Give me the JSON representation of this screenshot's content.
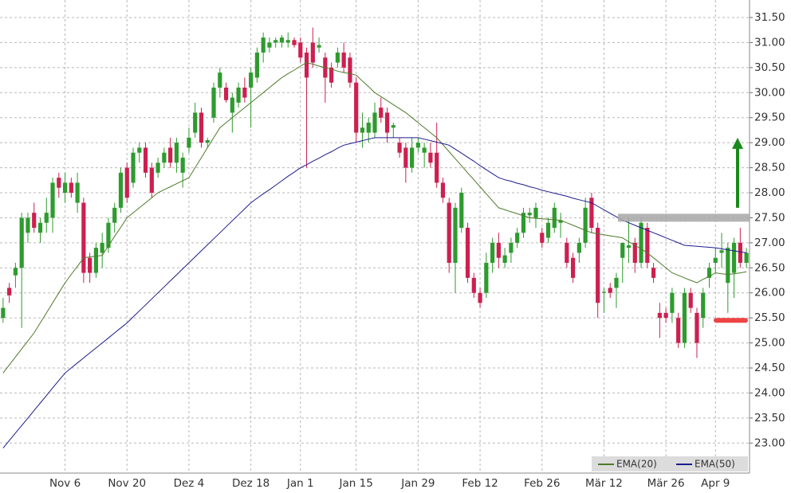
{
  "chart_data": {
    "type": "candlestick",
    "categories": [
      null,
      null,
      null,
      null,
      null,
      null,
      null,
      null,
      null,
      null,
      "Nov 6",
      null,
      null,
      null,
      null,
      null,
      null,
      null,
      null,
      null,
      "Nov 20",
      null,
      null,
      null,
      null,
      null,
      null,
      null,
      null,
      null,
      "Dez 4",
      null,
      null,
      null,
      null,
      null,
      null,
      null,
      null,
      null,
      "Dez 18",
      null,
      null,
      null,
      null,
      null,
      null,
      null,
      "Jan 1",
      null,
      null,
      null,
      null,
      null,
      null,
      null,
      null,
      "Jan 15",
      null,
      null,
      null,
      null,
      null,
      null,
      null,
      null,
      null,
      "Jan 29",
      null,
      null,
      null,
      null,
      null,
      null,
      null,
      null,
      null,
      "Feb 12",
      null,
      null,
      null,
      null,
      null,
      null,
      null,
      null,
      null,
      "Feb 26",
      null,
      null,
      null,
      null,
      null,
      null,
      null,
      null,
      null,
      "Mär 12",
      null,
      null,
      null,
      null,
      null,
      null,
      null,
      null,
      null,
      "Mär 26",
      null,
      null,
      null,
      null,
      null,
      null,
      null,
      "Apr 9",
      null,
      null,
      null,
      null,
      null
    ],
    "open": [
      25.5,
      26.1,
      26.35,
      26.5,
      27.2,
      27.6,
      27.2,
      27.4,
      27.5,
      28.3,
      28.0,
      28.2,
      27.8,
      27.8,
      26.7,
      26.4,
      26.8,
      26.9,
      27.4,
      27.7,
      28.5,
      28.2,
      28.8,
      28.9,
      28.5,
      28.4,
      28.6,
      28.9,
      28.6,
      28.4,
      28.9,
      29.2,
      29.6,
      29.0,
      29.5,
      30.1,
      30.1,
      29.6,
      29.8,
      30.1,
      30.1,
      30.3,
      30.8,
      30.9,
      31.0,
      31.0,
      31.0,
      31.05,
      31.0,
      30.8,
      31.0,
      30.9,
      30.7,
      30.5,
      30.6,
      30.8,
      30.7,
      30.2,
      29.2,
      29.2,
      29.2,
      29.7,
      29.6,
      29.3,
      29.0,
      28.9,
      28.5,
      28.9,
      28.8,
      28.8,
      28.8,
      28.2,
      27.8,
      26.6,
      27.3,
      27.3,
      26.3,
      26.0,
      26.0,
      26.6,
      27.0,
      26.6,
      26.8,
      27.0,
      27.2,
      27.55,
      27.5,
      27.2,
      27.1,
      27.3,
      27.4,
      27.0,
      26.7,
      26.8,
      27.0,
      27.9,
      27.3,
      26.0,
      26.1,
      26.1,
      26.7,
      26.9,
      27.0,
      26.6,
      27.3,
      26.5,
      25.6,
      25.6,
      25.6,
      25.5,
      25.0,
      26.0,
      25.6,
      25.5,
      26.3,
      26.6,
      26.8,
      26.2,
      26.4,
      27.0,
      26.6
    ],
    "high": [
      25.9,
      26.2,
      26.6,
      27.6,
      27.6,
      27.8,
      27.5,
      27.9,
      28.3,
      28.4,
      28.4,
      28.3,
      28.4,
      27.9,
      26.8,
      27.0,
      27.2,
      27.5,
      27.8,
      28.5,
      28.6,
      28.9,
      29.0,
      29.0,
      28.6,
      28.7,
      28.9,
      29.1,
      29.1,
      28.8,
      29.3,
      29.8,
      29.7,
      29.1,
      30.2,
      30.5,
      30.2,
      30.0,
      30.2,
      30.3,
      30.5,
      30.9,
      31.2,
      31.1,
      31.1,
      31.15,
      31.2,
      31.1,
      31.1,
      30.9,
      31.3,
      31.1,
      30.8,
      30.6,
      30.9,
      31.0,
      30.8,
      30.3,
      29.6,
      29.5,
      29.8,
      29.9,
      29.7,
      29.4,
      29.1,
      29.0,
      29.1,
      29.1,
      29.0,
      29.0,
      29.4,
      28.3,
      27.9,
      27.8,
      28.1,
      27.4,
      26.4,
      26.1,
      26.8,
      27.1,
      27.2,
      26.9,
      27.1,
      27.3,
      27.7,
      27.7,
      27.8,
      27.3,
      27.5,
      27.8,
      27.6,
      27.1,
      26.8,
      27.1,
      27.9,
      28.0,
      27.4,
      26.1,
      26.2,
      26.4,
      27.0,
      27.5,
      27.1,
      27.5,
      27.4,
      26.6,
      25.8,
      25.7,
      26.1,
      25.6,
      26.1,
      26.1,
      25.7,
      26.1,
      26.6,
      26.9,
      27.2,
      27.0,
      27.1,
      27.3,
      26.9
    ],
    "low": [
      25.4,
      25.8,
      26.1,
      25.3,
      27.0,
      27.2,
      27.0,
      27.2,
      27.2,
      27.9,
      27.8,
      27.9,
      27.6,
      26.2,
      26.2,
      26.3,
      26.5,
      26.8,
      27.2,
      27.6,
      27.8,
      28.1,
      28.6,
      28.3,
      27.9,
      28.3,
      28.5,
      28.5,
      28.4,
      28.1,
      28.8,
      29.1,
      28.9,
      28.9,
      29.4,
      29.9,
      29.8,
      29.2,
      29.7,
      29.8,
      29.3,
      30.2,
      30.6,
      30.8,
      30.9,
      30.9,
      30.9,
      30.9,
      30.6,
      28.5,
      30.5,
      30.8,
      29.8,
      30.1,
      30.5,
      30.4,
      30.1,
      29.0,
      28.9,
      29.0,
      29.1,
      29.4,
      29.0,
      29.1,
      28.7,
      28.2,
      28.4,
      28.8,
      28.5,
      28.5,
      28.1,
      27.8,
      26.4,
      26.0,
      27.2,
      26.2,
      25.9,
      25.7,
      25.9,
      26.4,
      26.5,
      26.5,
      26.6,
      26.9,
      27.1,
      27.4,
      27.3,
      26.9,
      27.0,
      27.2,
      27.1,
      26.5,
      26.2,
      26.6,
      26.9,
      27.2,
      25.5,
      25.6,
      25.9,
      25.7,
      26.2,
      26.6,
      26.4,
      26.5,
      26.5,
      26.2,
      25.1,
      25.4,
      25.4,
      24.9,
      24.9,
      25.6,
      24.7,
      25.3,
      26.1,
      26.4,
      26.5,
      25.6,
      25.9,
      26.5,
      26.5
    ],
    "close": [
      25.7,
      25.95,
      26.5,
      27.5,
      27.5,
      27.3,
      27.4,
      27.6,
      28.2,
      28.1,
      28.2,
      28.0,
      28.2,
      26.4,
      26.4,
      26.9,
      27.0,
      27.4,
      27.7,
      28.4,
      27.9,
      28.8,
      28.9,
      28.4,
      28.0,
      28.6,
      28.8,
      28.6,
      29.0,
      28.7,
      29.1,
      29.6,
      29.0,
      29.05,
      30.1,
      30.4,
      29.85,
      29.9,
      30.1,
      29.9,
      30.4,
      30.8,
      31.1,
      31.0,
      31.05,
      31.1,
      31.05,
      30.95,
      30.7,
      30.3,
      30.6,
      30.95,
      30.3,
      30.2,
      30.8,
      30.5,
      30.2,
      29.2,
      29.3,
      29.4,
      29.6,
      29.5,
      29.2,
      29.35,
      28.8,
      28.5,
      28.9,
      29.0,
      28.9,
      28.6,
      28.2,
      27.9,
      26.6,
      27.7,
      28.0,
      26.3,
      26.0,
      25.8,
      26.6,
      27.0,
      26.7,
      26.75,
      27.0,
      27.2,
      27.6,
      27.6,
      27.7,
      27.0,
      27.4,
      27.7,
      27.45,
      26.6,
      26.3,
      27.0,
      27.7,
      27.3,
      25.8,
      26.02,
      26.0,
      26.3,
      27.0,
      26.95,
      26.6,
      27.4,
      26.6,
      26.3,
      25.5,
      25.5,
      26.0,
      25.0,
      26.0,
      25.7,
      25.0,
      26.0,
      26.5,
      26.7,
      26.85,
      26.9,
      27.0,
      26.6,
      26.8
    ],
    "up_color": "#2e9b2e",
    "down_color": "#cc2050",
    "series": [
      {
        "name": "EMA(20)",
        "color": "#4d7a2a",
        "values": [
          24.4,
          24.56,
          24.72,
          24.88,
          25.04,
          25.2,
          25.4,
          25.6,
          25.8,
          26.0,
          26.2,
          26.37,
          26.53,
          26.7,
          26.72,
          26.73,
          26.75,
          26.94,
          27.13,
          27.31,
          27.5,
          27.6,
          27.7,
          27.8,
          27.9,
          28.0,
          28.06,
          28.12,
          28.18,
          28.24,
          28.3,
          28.5,
          28.7,
          28.9,
          29.1,
          29.3,
          29.4,
          29.5,
          29.6,
          29.7,
          29.8,
          29.9,
          30.0,
          30.1,
          30.2,
          30.3,
          30.38,
          30.45,
          30.53,
          30.6,
          30.57,
          30.53,
          30.5,
          30.47,
          30.43,
          30.4,
          30.38,
          30.35,
          30.23,
          30.12,
          30.0,
          29.92,
          29.84,
          29.76,
          29.68,
          29.6,
          29.5,
          29.4,
          29.3,
          29.2,
          29.1,
          28.96,
          28.82,
          28.68,
          28.54,
          28.4,
          28.26,
          28.12,
          27.98,
          27.84,
          27.7,
          27.66,
          27.62,
          27.58,
          27.54,
          27.5,
          27.49,
          27.48,
          27.47,
          27.46,
          27.45,
          27.4,
          27.35,
          27.3,
          27.25,
          27.2,
          27.18,
          27.16,
          27.14,
          27.12,
          27.1,
          27.02,
          26.95,
          26.88,
          26.8,
          26.7,
          26.6,
          26.5,
          26.4,
          26.35,
          26.3,
          26.25,
          26.2,
          26.27,
          26.33,
          26.4,
          26.38,
          26.37,
          26.38,
          26.4,
          26.42
        ]
      },
      {
        "name": "EMA(50)",
        "color": "#1c1c8c",
        "values": [
          22.9,
          23.05,
          23.2,
          23.35,
          23.5,
          23.65,
          23.8,
          23.95,
          24.1,
          24.25,
          24.4,
          24.5,
          24.6,
          24.7,
          24.8,
          24.9,
          25.0,
          25.1,
          25.2,
          25.3,
          25.4,
          25.52,
          25.64,
          25.76,
          25.88,
          26.0,
          26.12,
          26.24,
          26.36,
          26.48,
          26.6,
          26.72,
          26.84,
          26.96,
          27.08,
          27.2,
          27.32,
          27.44,
          27.56,
          27.68,
          27.8,
          27.89,
          27.98,
          28.06,
          28.15,
          28.24,
          28.33,
          28.41,
          28.5,
          28.56,
          28.63,
          28.69,
          28.76,
          28.82,
          28.89,
          28.95,
          28.98,
          29.01,
          29.04,
          29.07,
          29.1,
          29.1,
          29.1,
          29.1,
          29.1,
          29.1,
          29.1,
          29.1,
          29.07,
          29.04,
          29.01,
          28.98,
          28.95,
          28.87,
          28.79,
          28.71,
          28.63,
          28.54,
          28.46,
          28.38,
          28.3,
          28.26,
          28.23,
          28.19,
          28.16,
          28.12,
          28.09,
          28.05,
          28.02,
          27.99,
          27.96,
          27.93,
          27.89,
          27.86,
          27.83,
          27.8,
          27.73,
          27.66,
          27.59,
          27.52,
          27.45,
          27.4,
          27.35,
          27.3,
          27.25,
          27.2,
          27.15,
          27.1,
          27.05,
          27.0,
          26.95,
          26.94,
          26.93,
          26.92,
          26.91,
          26.9,
          26.88,
          26.86,
          26.84,
          26.82,
          26.8
        ]
      }
    ],
    "levels": [
      {
        "value": 27.5,
        "color": "#a8a8a8"
      },
      {
        "value": 25.45,
        "color": "#ee4444"
      }
    ],
    "arrow": {
      "from": 27.7,
      "to": 29.1,
      "color": "#1a8a1a"
    },
    "ylim": [
      22.4,
      31.85
    ],
    "yticks": [
      {
        "value": 23,
        "label": "23.00"
      },
      {
        "value": 23.5,
        "label": "23.50"
      },
      {
        "value": 24,
        "label": "24.00"
      },
      {
        "value": 24.5,
        "label": "24.50"
      },
      {
        "value": 25,
        "label": "25.00"
      },
      {
        "value": 25.5,
        "label": "25.50"
      },
      {
        "value": 26,
        "label": "26.00"
      },
      {
        "value": 26.5,
        "label": "26.50"
      },
      {
        "value": 27,
        "label": "27.00"
      },
      {
        "value": 27.5,
        "label": "27.50"
      },
      {
        "value": 28,
        "label": "28.00"
      },
      {
        "value": 28.5,
        "label": "28.50"
      },
      {
        "value": 29,
        "label": "29.00"
      },
      {
        "value": 29.5,
        "label": "29.50"
      },
      {
        "value": 30,
        "label": "30.00"
      },
      {
        "value": 30.5,
        "label": "30.50"
      },
      {
        "value": 31,
        "label": "31.00"
      },
      {
        "value": 31.5,
        "label": "31.50"
      }
    ],
    "grid": true,
    "legend": "bottom-right"
  }
}
